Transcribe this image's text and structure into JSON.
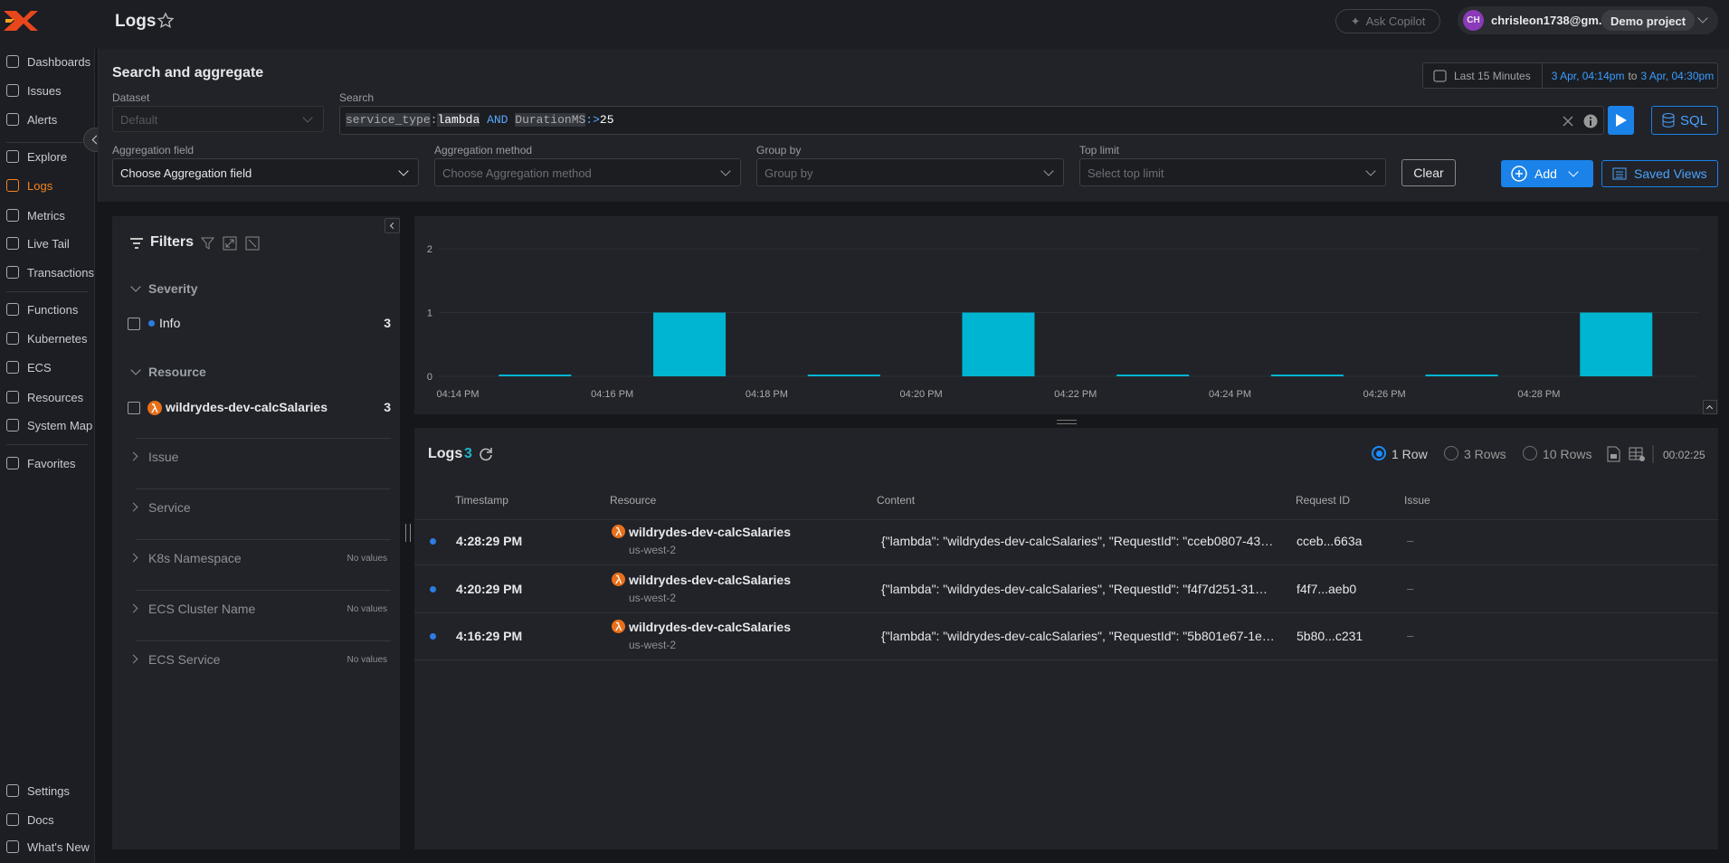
{
  "header": {
    "title": "Logs",
    "ask_copilot": "Ask Copilot",
    "user_initials": "CH",
    "user": "chrisleon1738@gm...",
    "project": "Demo project"
  },
  "sidebar": {
    "items": [
      "Dashboards",
      "Issues",
      "Alerts",
      "Explore",
      "Logs",
      "Metrics",
      "Live Tail",
      "Transactions",
      "Functions",
      "Kubernetes",
      "ECS",
      "Resources",
      "System Map",
      "Favorites"
    ],
    "footer": [
      "Settings",
      "Docs",
      "What's New"
    ]
  },
  "search_panel": {
    "title": "Search and aggregate",
    "time_range": {
      "preset": "Last 15 Minutes",
      "from": "3 Apr, 04:14pm",
      "to_word": "to",
      "to": "3 Apr, 04:30pm"
    },
    "dataset": {
      "label": "Dataset",
      "placeholder": "Default"
    },
    "search": {
      "label": "Search",
      "query": [
        "service_type",
        ":",
        "lambda",
        "AND",
        "DurationMS",
        ":>",
        "25"
      ]
    },
    "sql": "SQL",
    "aggregation_field": {
      "label": "Aggregation field",
      "value": "Choose Aggregation field"
    },
    "aggregation_method": {
      "label": "Aggregation method",
      "placeholder": "Choose Aggregation method"
    },
    "group_by": {
      "label": "Group by",
      "placeholder": "Group by"
    },
    "top_limit": {
      "label": "Top limit",
      "placeholder": "Select top limit"
    },
    "clear": "Clear",
    "add": "Add",
    "saved_views": "Saved Views"
  },
  "filters": {
    "title": "Filters",
    "groups": [
      {
        "name": "Severity",
        "items": [
          {
            "label": "Info",
            "count": 3
          }
        ]
      },
      {
        "name": "Resource",
        "items": [
          {
            "label": "wildrydes-dev-calcSalaries",
            "count": 3
          }
        ]
      }
    ],
    "collapsed": [
      {
        "name": "Issue"
      },
      {
        "name": "Service"
      },
      {
        "name": "K8s Namespace",
        "note": "No values"
      },
      {
        "name": "ECS Cluster Name",
        "note": "No values"
      },
      {
        "name": "ECS Service",
        "note": "No values"
      }
    ]
  },
  "chart_data": {
    "type": "bar",
    "categories": [
      "04:14 PM",
      "04:16 PM",
      "04:18 PM",
      "04:20 PM",
      "04:22 PM",
      "04:24 PM",
      "04:26 PM",
      "04:28 PM"
    ],
    "values": [
      0,
      1,
      0,
      1,
      0,
      0,
      0,
      1
    ],
    "color": "#00b5d1",
    "ylim": [
      0,
      2
    ],
    "yticks": [
      0,
      1,
      2
    ],
    "grid": true
  },
  "logs": {
    "title": "Logs",
    "count": 3,
    "row_options": [
      "1 Row",
      "3 Rows",
      "10 Rows"
    ],
    "duration": "00:02:25",
    "columns": [
      "Timestamp",
      "Resource",
      "Content",
      "Request ID",
      "Issue"
    ],
    "rows": [
      {
        "timestamp": "4:28:29 PM",
        "resource": "wildrydes-dev-calcSalaries",
        "region": "us-west-2",
        "content": "{\"lambda\": \"wildrydes-dev-calcSalaries\", \"RequestId\": \"cceb0807-43…",
        "request_id": "cceb...663a",
        "issue": "–"
      },
      {
        "timestamp": "4:20:29 PM",
        "resource": "wildrydes-dev-calcSalaries",
        "region": "us-west-2",
        "content": "{\"lambda\": \"wildrydes-dev-calcSalaries\", \"RequestId\": \"f4f7d251-31…",
        "request_id": "f4f7...aeb0",
        "issue": "–"
      },
      {
        "timestamp": "4:16:29 PM",
        "resource": "wildrydes-dev-calcSalaries",
        "region": "us-west-2",
        "content": "{\"lambda\": \"wildrydes-dev-calcSalaries\", \"RequestId\": \"5b801e67-1e…",
        "request_id": "5b80...c231",
        "issue": "–"
      }
    ]
  }
}
